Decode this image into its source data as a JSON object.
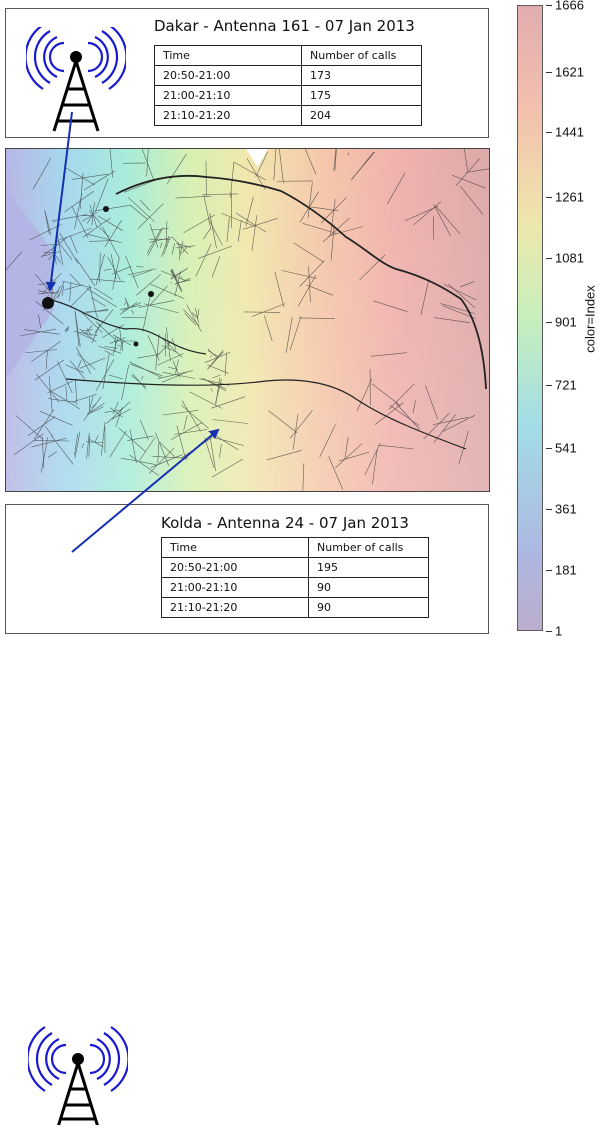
{
  "top_panel": {
    "title": "Dakar - Antenna 161 - 07 Jan 2013",
    "table": {
      "headers": [
        "Time",
        "Number of calls"
      ],
      "rows": [
        [
          "20:50-21:00",
          "173"
        ],
        [
          "21:00-21:10",
          "175"
        ],
        [
          "21:10-21:20",
          "204"
        ]
      ]
    }
  },
  "bottom_panel": {
    "title": "Kolda - Antenna 24 - 07 Jan 2013",
    "table": {
      "headers": [
        "Time",
        "Number of calls"
      ],
      "rows": [
        [
          "20:50-21:00",
          "195"
        ],
        [
          "21:00-21:10",
          "90"
        ],
        [
          "21:10-21:20",
          "90"
        ]
      ]
    }
  },
  "colorbar": {
    "label": "color=Index",
    "ticks": [
      "1666",
      "1621",
      "1441",
      "1261",
      "1081",
      "901",
      "721",
      "541",
      "361",
      "181",
      "1"
    ]
  },
  "colors": {
    "arrow": "#1530b0",
    "antenna_waves": "#1a1ad0",
    "antenna_tower": "#000000"
  }
}
